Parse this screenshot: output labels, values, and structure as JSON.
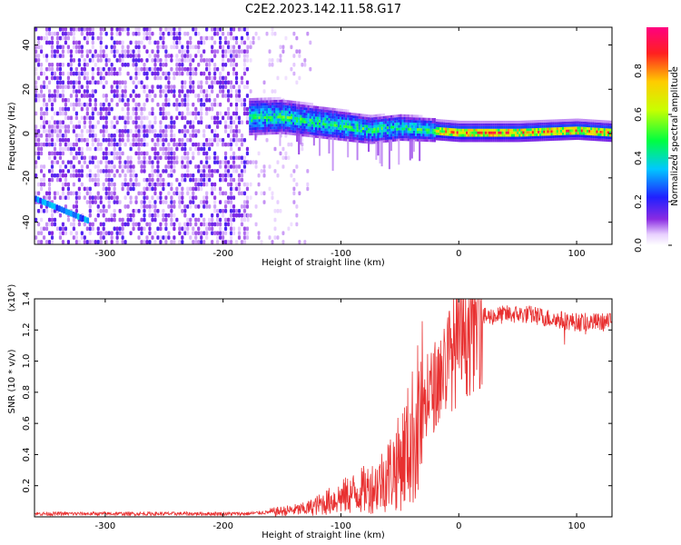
{
  "title": "C2E2.2023.142.11.58.G17",
  "chart_data": [
    {
      "type": "heatmap",
      "title": "C2E2.2023.142.11.58.G17",
      "xlabel": "Height of straight line (km)",
      "ylabel": "Frequency (Hz)",
      "xlim": [
        -360,
        130
      ],
      "ylim": [
        -50,
        48
      ],
      "x_ticks": [
        "-300",
        "-200",
        "-100",
        "0",
        "100"
      ],
      "y_ticks": [
        "-40",
        "-20",
        "0",
        "20",
        "40"
      ],
      "colorbar": {
        "label": "Normalized spectral amplitude",
        "range": [
          0.0,
          1.0
        ],
        "ticks": [
          "0.0",
          "0.2",
          "0.4",
          "0.6",
          "0.8"
        ],
        "colormap": "rainbow (white/violet low to red/pink high)"
      },
      "features": {
        "noise_region_x": [
          -360,
          -180
        ],
        "signal_band": [
          {
            "x": -175,
            "y": 7
          },
          {
            "x": -150,
            "y": 7
          },
          {
            "x": -125,
            "y": 5
          },
          {
            "x": -100,
            "y": 3
          },
          {
            "x": -75,
            "y": 1
          },
          {
            "x": -50,
            "y": 2
          },
          {
            "x": -25,
            "y": 1
          },
          {
            "x": 0,
            "y": 0
          },
          {
            "x": 50,
            "y": 0
          },
          {
            "x": 100,
            "y": 1
          },
          {
            "x": 130,
            "y": 0
          }
        ],
        "low_feature": [
          {
            "x": -360,
            "y": -30
          },
          {
            "x": -315,
            "y": -40
          }
        ]
      }
    },
    {
      "type": "line",
      "xlabel": "Height of straight line (km)",
      "ylabel": "SNR (10 * v/v)",
      "y_scale_note": "(x10⁴)",
      "xlim": [
        -360,
        130
      ],
      "ylim": [
        0,
        1.4
      ],
      "x_ticks": [
        "-300",
        "-200",
        "-100",
        "0",
        "100"
      ],
      "y_ticks": [
        "0.2",
        "0.4",
        "0.6",
        "0.8",
        "1.0",
        "1.2",
        "1.4"
      ],
      "series_color": "#e83030",
      "envelope": [
        {
          "x": -360,
          "y": 0.02
        },
        {
          "x": -250,
          "y": 0.02
        },
        {
          "x": -180,
          "y": 0.02
        },
        {
          "x": -160,
          "y": 0.03
        },
        {
          "x": -130,
          "y": 0.05
        },
        {
          "x": -110,
          "y": 0.1
        },
        {
          "x": -90,
          "y": 0.15
        },
        {
          "x": -70,
          "y": 0.2
        },
        {
          "x": -50,
          "y": 0.35
        },
        {
          "x": -40,
          "y": 0.5
        },
        {
          "x": -30,
          "y": 0.7
        },
        {
          "x": -20,
          "y": 0.85
        },
        {
          "x": -10,
          "y": 1.0
        },
        {
          "x": 0,
          "y": 1.1
        },
        {
          "x": 10,
          "y": 1.2
        },
        {
          "x": 20,
          "y": 1.28
        },
        {
          "x": 40,
          "y": 1.3
        },
        {
          "x": 60,
          "y": 1.3
        },
        {
          "x": 80,
          "y": 1.27
        },
        {
          "x": 100,
          "y": 1.25
        },
        {
          "x": 130,
          "y": 1.25
        }
      ]
    }
  ]
}
